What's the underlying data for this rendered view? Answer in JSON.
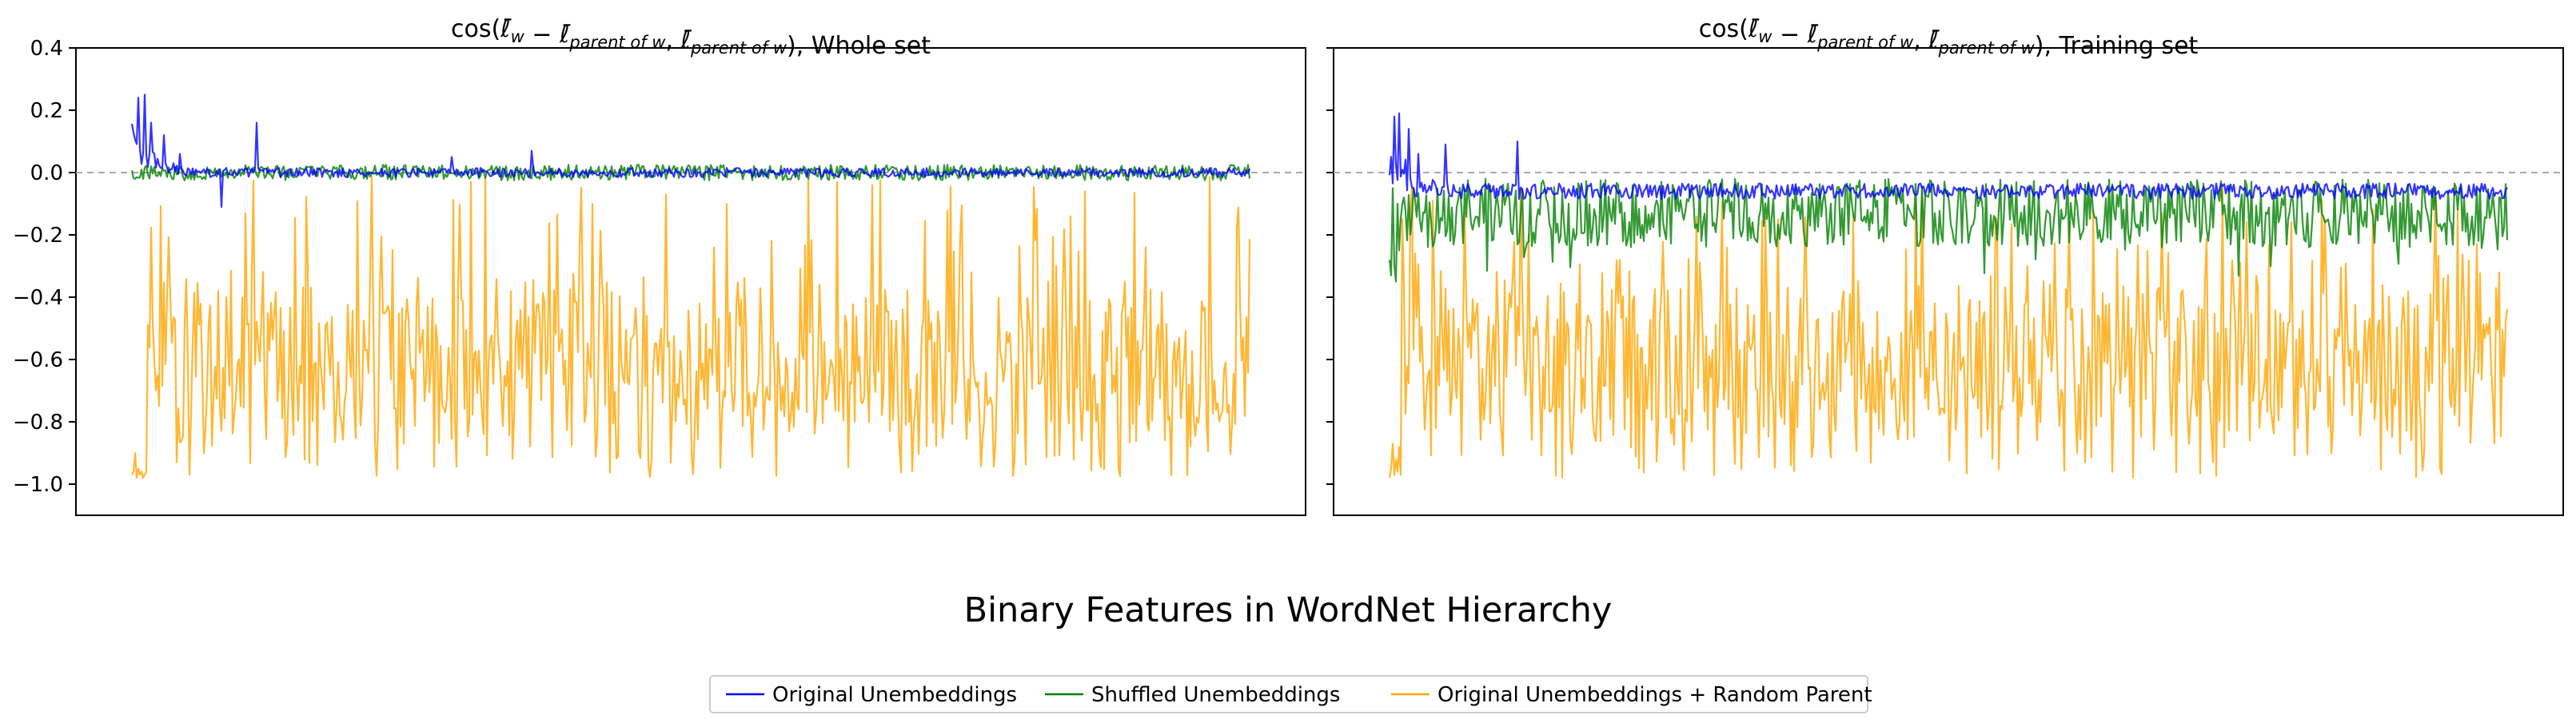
{
  "figure": {
    "suptitle": "Binary Features in WordNet Hierarchy",
    "legend": {
      "placement": "bottom-center",
      "entries": [
        {
          "label": "Original Unembeddings",
          "color": "#0000ff"
        },
        {
          "label": "Shuffled Unembeddings",
          "color": "#008000"
        },
        {
          "label": "Original Unembeddings + Random Parent",
          "color": "#ffa500"
        }
      ]
    }
  },
  "chart_data": [
    {
      "type": "line",
      "title": "cos(ℓ̄w − ℓ̄parent of w, ℓ̄parent of w), Whole set",
      "title_parts": {
        "prefix": "cos(",
        "a": "ℓ̄",
        "a_sub": "w",
        "minus": " − ",
        "b": "ℓ̄",
        "b_sub": "parent of w",
        "comma": ", ",
        "c": "ℓ̄",
        "c_sub": "parent of w",
        "suffix": "), Whole set"
      },
      "xlabel": "",
      "ylabel": "",
      "ylim": [
        -1.1,
        0.4
      ],
      "yticks": [
        0.4,
        0.2,
        0.0,
        -0.2,
        -0.4,
        -0.6,
        -0.8,
        -1.0
      ],
      "ytick_labels": [
        "0.4",
        "0.2",
        "0.0",
        "−0.2",
        "−0.4",
        "−0.6",
        "−0.8",
        "−1.0"
      ],
      "xticks_shown": false,
      "reference_line": {
        "y": 0.0,
        "style": "dashed",
        "color": "#aaaaaa"
      },
      "n_points": 700,
      "x_range": [
        0,
        699
      ],
      "series": [
        {
          "name": "Original Unembeddings",
          "color": "#0000ff",
          "profile": {
            "start": 0.25,
            "spike_region": [
              0,
              80
            ],
            "spike_max": 0.25,
            "spikes": [
              [
                4,
                0.24
              ],
              [
                8,
                0.25
              ],
              [
                12,
                0.16
              ],
              [
                20,
                0.12
              ],
              [
                30,
                0.06
              ],
              [
                56,
                -0.11
              ],
              [
                78,
                0.16
              ],
              [
                200,
                0.05
              ],
              [
                250,
                0.07
              ]
            ],
            "baseline": 0.0,
            "noise": 0.015
          }
        },
        {
          "name": "Shuffled Unembeddings",
          "color": "#008000",
          "profile": {
            "baseline": 0.0,
            "noise": 0.025,
            "min": -0.06,
            "max": 0.06
          }
        },
        {
          "name": "Original Unembeddings + Random Parent",
          "color": "#ffa500",
          "profile": {
            "start": -0.97,
            "first_points": [
              -0.97,
              -0.96,
              -0.9,
              -0.98,
              -0.95,
              -0.97,
              -0.96,
              -0.98,
              -0.97,
              -0.96
            ],
            "mean": -0.62,
            "range": [
              -0.98,
              -0.01
            ]
          }
        }
      ]
    },
    {
      "type": "line",
      "title": "cos(ℓ̄w − ℓ̄parent of w, ℓ̄parent of w), Training set",
      "title_parts": {
        "prefix": "cos(",
        "a": "ℓ̄",
        "a_sub": "w",
        "minus": " − ",
        "b": "ℓ̄",
        "b_sub": "parent of w",
        "comma": ", ",
        "c": "ℓ̄",
        "c_sub": "parent of w",
        "suffix": "), Training set"
      },
      "xlabel": "",
      "ylabel": "",
      "ylim": [
        -1.1,
        0.4
      ],
      "yticks_shared": true,
      "xticks_shown": false,
      "reference_line": {
        "y": 0.0,
        "style": "dashed",
        "color": "#aaaaaa"
      },
      "n_points": 700,
      "x_range": [
        0,
        699
      ],
      "series": [
        {
          "name": "Original Unembeddings",
          "color": "#0000ff",
          "profile": {
            "start": 0.18,
            "spikes": [
              [
                3,
                0.18
              ],
              [
                6,
                0.19
              ],
              [
                12,
                0.14
              ],
              [
                18,
                0.06
              ],
              [
                35,
                0.09
              ],
              [
                80,
                0.1
              ]
            ],
            "baseline": -0.06,
            "noise": 0.025
          }
        },
        {
          "name": "Shuffled Unembeddings",
          "color": "#008000",
          "profile": {
            "start": -0.28,
            "first_points": [
              -0.28,
              -0.33,
              -0.05,
              -0.3,
              -0.35,
              -0.1,
              -0.25
            ],
            "mean": -0.13,
            "range": [
              -0.35,
              -0.02
            ]
          }
        },
        {
          "name": "Original Unembeddings + Random Parent",
          "color": "#ffa500",
          "profile": {
            "start": -0.97,
            "first_points": [
              -0.98,
              -0.95,
              -0.87,
              -0.97,
              -0.92,
              -0.96,
              -0.88,
              -0.97
            ],
            "mean": -0.6,
            "range": [
              -0.98,
              -0.05
            ]
          }
        }
      ]
    }
  ]
}
